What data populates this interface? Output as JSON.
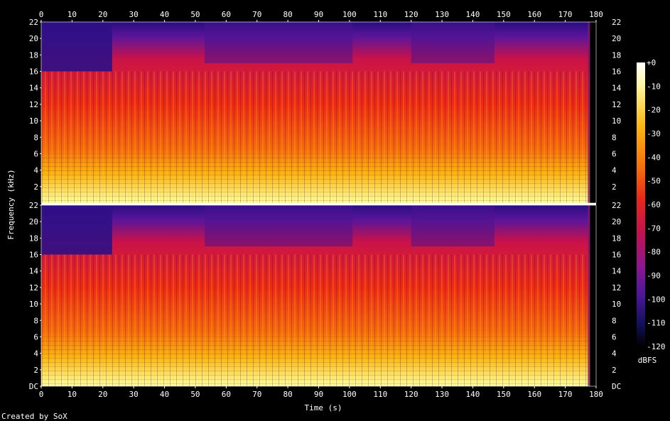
{
  "chart_data": {
    "type": "heatmap",
    "title": "",
    "xlabel": "Time (s)",
    "ylabel": "Frequency (kHz)",
    "xlim": [
      0,
      180
    ],
    "ylim": [
      0,
      22
    ],
    "x_ticks": [
      0,
      10,
      20,
      30,
      40,
      50,
      60,
      70,
      80,
      90,
      100,
      110,
      120,
      130,
      140,
      150,
      160,
      170,
      180
    ],
    "y_ticks": [
      "DC",
      "2",
      "4",
      "6",
      "8",
      "10",
      "12",
      "14",
      "16",
      "18",
      "20",
      "22"
    ],
    "channels": 2,
    "colorbar": {
      "label": "dBFS",
      "range": [
        -120,
        0
      ],
      "ticks": [
        "+0",
        "-10",
        "-20",
        "-30",
        "-40",
        "-50",
        "-60",
        "-70",
        "-80",
        "-90",
        "-100",
        "-110",
        "-120"
      ]
    },
    "footer": "Created by SoX",
    "duration_s": 178
  }
}
